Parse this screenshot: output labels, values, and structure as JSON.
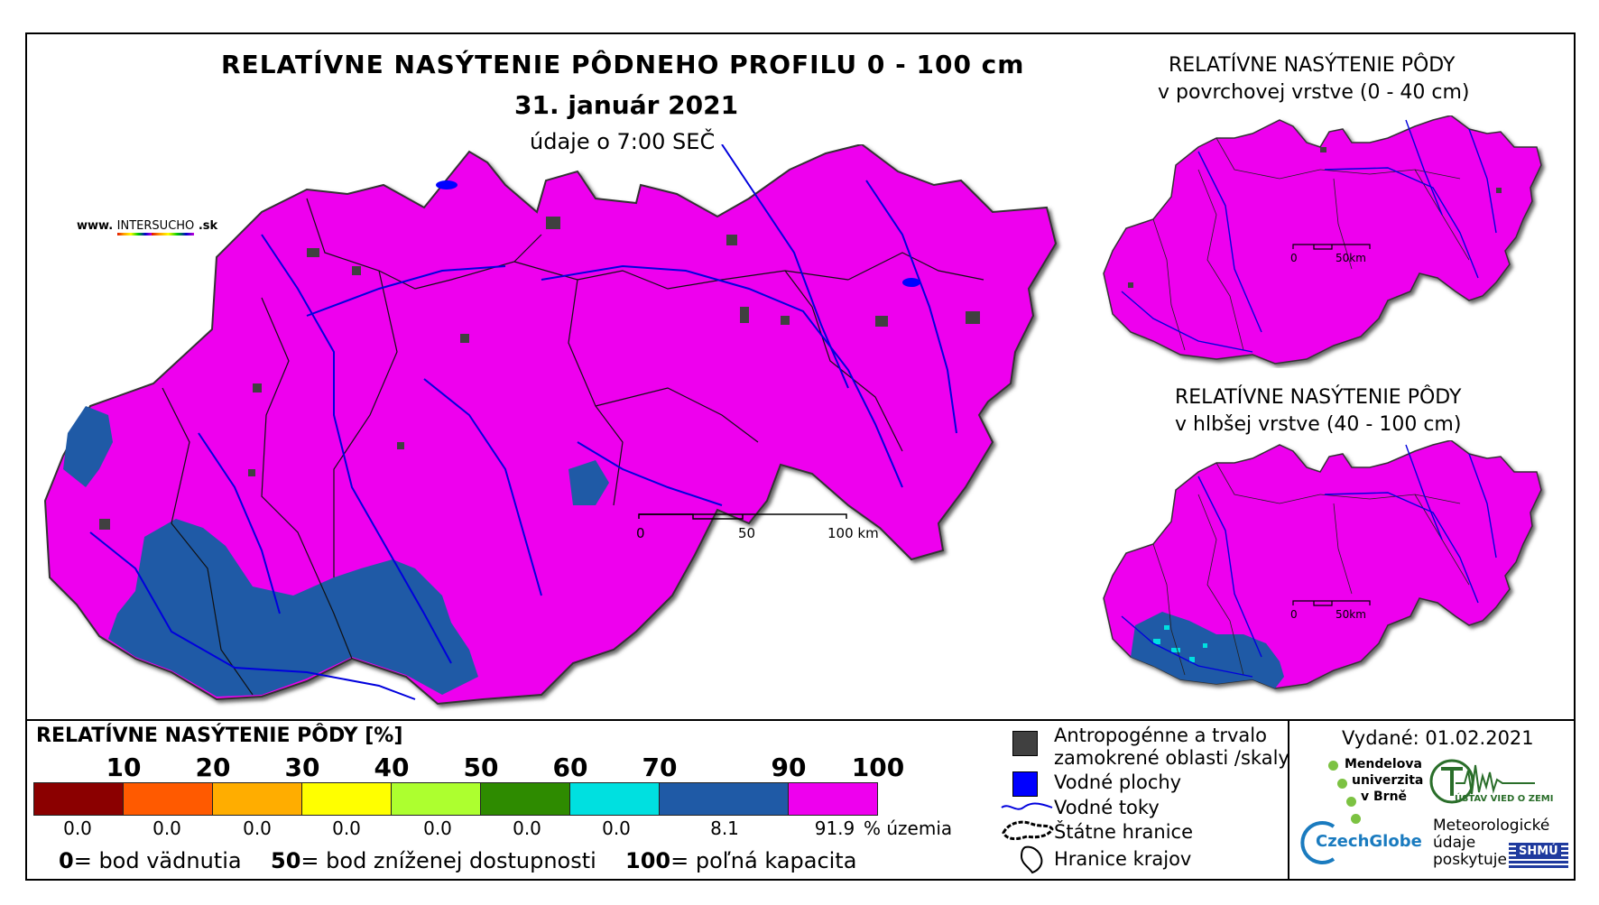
{
  "main": {
    "title": "RELATÍVNE NASÝTENIE PÔDNEHO PROFILU 0 - 100 cm",
    "date": "31. január 2021",
    "time_note": "údaje o 7:00 SEČ",
    "website_prefix": "www.",
    "website_name_a": "INTER",
    "website_name_b": "SUCHO",
    "website_suffix": ".sk",
    "scale_labels": [
      "0",
      "50",
      "100 km"
    ]
  },
  "inset_top": {
    "title_line1": "RELATÍVNE NASÝTENIE PÔDY",
    "title_line2": "v povrchovej vrstve (0 - 40 cm)",
    "scale_labels": [
      "0",
      "50km"
    ]
  },
  "inset_bottom": {
    "title_line1": "RELATÍVNE NASÝTENIE PÔDY",
    "title_line2": "v hlbšej vrstve (40 - 100 cm)",
    "scale_labels": [
      "0",
      "50km"
    ]
  },
  "legend": {
    "title": "RELATÍVNE NASÝTENIE PÔDY [%]",
    "ticks": [
      "10",
      "20",
      "30",
      "40",
      "50",
      "60",
      "70",
      "90",
      "100"
    ],
    "colors": [
      "#8b0000",
      "#ff5a00",
      "#ffad00",
      "#ffff00",
      "#adff2f",
      "#2e8b00",
      "#00e0e0",
      "#1f5aa6",
      "#ee00ee"
    ],
    "percentages": [
      "0.0",
      "0.0",
      "0.0",
      "0.0",
      "0.0",
      "0.0",
      "0.0",
      "8.1",
      "91.9"
    ],
    "percent_unit": "% územia",
    "def_0_num": "0",
    "def_0_text": "= bod vädnutia",
    "def_50_num": "50",
    "def_50_text": "= bod zníženej dostupnosti",
    "def_100_num": "100",
    "def_100_text": "= poľná kapacita"
  },
  "symbols": {
    "anthropogenic_line1": "Antropogénne a trvalo",
    "anthropogenic_line2": "zamokrené oblasti /skaly",
    "water_surfaces": "Vodné plochy",
    "water_streams": "Vodné toky",
    "state_borders": "Štátne hranice",
    "region_borders": "Hranice krajov"
  },
  "credits": {
    "issued": "Vydané: 01.02.2021",
    "mendelu_1": "Mendelova",
    "mendelu_2": "univerzita",
    "mendelu_3": "v Brně",
    "czechglobe": "CzechGlobe",
    "ustav": "ÚSTAV VIED O ZEMI",
    "meteo_1": "Meteorologické",
    "meteo_2": "údaje",
    "meteo_3": "poskytuje:",
    "shmu": "SHMÚ"
  },
  "colors": {
    "magenta": "#ee00ee",
    "blue": "#1f5aa6",
    "river": "#0000dd",
    "anthropogenic": "#404040",
    "water": "#0000ff"
  }
}
